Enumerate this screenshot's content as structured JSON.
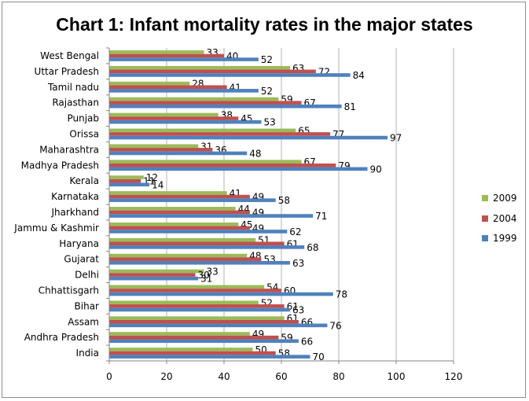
{
  "chart_data": {
    "type": "bar",
    "orientation": "horizontal",
    "title": "Chart 1: Infant mortality rates in the major states",
    "categories": [
      "West Bengal",
      "Uttar Pradesh",
      "Tamil nadu",
      "Rajasthan",
      "Punjab",
      "Orissa",
      "Maharashtra",
      "Madhya Pradesh",
      "Kerala",
      "Karnataka",
      "Jharkhand",
      "Jammu & Kashmir",
      "Haryana",
      "Gujarat",
      "Delhi",
      "Chhattisgarh",
      "Bihar",
      "Assam",
      "Andhra Pradesh",
      "India"
    ],
    "series": [
      {
        "name": "2009",
        "color": "#9bbb59",
        "values": [
          33,
          63,
          28,
          59,
          38,
          65,
          31,
          67,
          12,
          41,
          44,
          45,
          51,
          48,
          33,
          54,
          52,
          61,
          49,
          50
        ]
      },
      {
        "name": "2004",
        "color": "#c0504d",
        "values": [
          40,
          72,
          41,
          67,
          45,
          77,
          36,
          79,
          11,
          49,
          49,
          49,
          61,
          53,
          30,
          60,
          61,
          66,
          59,
          58
        ]
      },
      {
        "name": "1999",
        "color": "#4f81bd",
        "values": [
          52,
          84,
          52,
          81,
          53,
          97,
          48,
          90,
          14,
          58,
          71,
          62,
          68,
          63,
          31,
          78,
          63,
          76,
          66,
          70
        ]
      }
    ],
    "xlim": [
      0,
      120
    ],
    "xticks": [
      0,
      20,
      40,
      60,
      80,
      100,
      120
    ],
    "legend_position": "right",
    "grid": "vertical",
    "data_labels": true
  }
}
